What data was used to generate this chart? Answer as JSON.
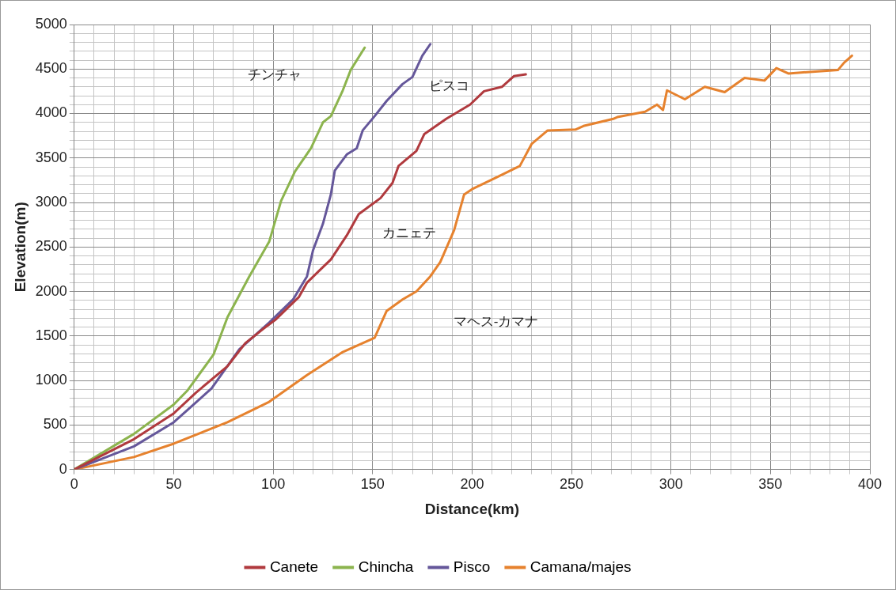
{
  "chart_data": {
    "type": "line",
    "xlabel": "Distance(km)",
    "ylabel": "Elevation(m)",
    "xlim": [
      0,
      400
    ],
    "ylim": [
      0,
      5000
    ],
    "xticks": [
      0,
      {
        "value": 10,
        "label": null
      },
      {
        "value": 20,
        "label": null
      },
      {
        "value": 30,
        "label": null
      },
      {
        "value": 40,
        "label": null
      },
      50,
      {
        "value": 60,
        "label": null
      },
      {
        "value": 70,
        "label": null
      },
      {
        "value": 80,
        "label": null
      },
      {
        "value": 90,
        "label": null
      },
      100,
      {
        "value": 110,
        "label": null
      },
      {
        "value": 120,
        "label": null
      },
      {
        "value": 130,
        "label": null
      },
      {
        "value": 140,
        "label": null
      },
      150,
      {
        "value": 160,
        "label": null
      },
      {
        "value": 170,
        "label": null
      },
      {
        "value": 180,
        "label": null
      },
      {
        "value": 190,
        "label": null
      },
      200,
      {
        "value": 210,
        "label": null
      },
      {
        "value": 220,
        "label": null
      },
      {
        "value": 230,
        "label": null
      },
      {
        "value": 240,
        "label": null
      },
      250,
      {
        "value": 260,
        "label": null
      },
      {
        "value": 270,
        "label": null
      },
      {
        "value": 280,
        "label": null
      },
      {
        "value": 290,
        "label": null
      },
      300,
      {
        "value": 310,
        "label": null
      },
      {
        "value": 320,
        "label": null
      },
      {
        "value": 330,
        "label": null
      },
      {
        "value": 340,
        "label": null
      },
      350,
      {
        "value": 360,
        "label": null
      },
      {
        "value": 370,
        "label": null
      },
      {
        "value": 380,
        "label": null
      },
      {
        "value": 390,
        "label": null
      },
      400
    ],
    "yticks": [
      0,
      {
        "value": 100,
        "label": null
      },
      {
        "value": 200,
        "label": null
      },
      {
        "value": 300,
        "label": null
      },
      {
        "value": 400,
        "label": null
      },
      500,
      {
        "value": 600,
        "label": null
      },
      {
        "value": 700,
        "label": null
      },
      {
        "value": 800,
        "label": null
      },
      {
        "value": 900,
        "label": null
      },
      1000,
      {
        "value": 1100,
        "label": null
      },
      {
        "value": 1200,
        "label": null
      },
      {
        "value": 1300,
        "label": null
      },
      {
        "value": 1400,
        "label": null
      },
      1500,
      {
        "value": 1600,
        "label": null
      },
      {
        "value": 1700,
        "label": null
      },
      {
        "value": 1800,
        "label": null
      },
      {
        "value": 1900,
        "label": null
      },
      2000,
      {
        "value": 2100,
        "label": null
      },
      {
        "value": 2200,
        "label": null
      },
      {
        "value": 2300,
        "label": null
      },
      {
        "value": 2400,
        "label": null
      },
      2500,
      {
        "value": 2600,
        "label": null
      },
      {
        "value": 2700,
        "label": null
      },
      {
        "value": 2800,
        "label": null
      },
      {
        "value": 2900,
        "label": null
      },
      3000,
      {
        "value": 3100,
        "label": null
      },
      {
        "value": 3200,
        "label": null
      },
      {
        "value": 3300,
        "label": null
      },
      {
        "value": 3400,
        "label": null
      },
      3500,
      {
        "value": 3600,
        "label": null
      },
      {
        "value": 3700,
        "label": null
      },
      {
        "value": 3800,
        "label": null
      },
      {
        "value": 3900,
        "label": null
      },
      4000,
      {
        "value": 4100,
        "label": null
      },
      {
        "value": 4200,
        "label": null
      },
      {
        "value": 4300,
        "label": null
      },
      {
        "value": 4400,
        "label": null
      },
      4500,
      {
        "value": 4600,
        "label": null
      },
      {
        "value": 4700,
        "label": null
      },
      {
        "value": 4800,
        "label": null
      },
      {
        "value": 4900,
        "label": null
      },
      5000
    ],
    "grid": true,
    "legend": "bottom",
    "series": [
      {
        "name": "Canete",
        "color": "#b03a3e",
        "x": [
          0,
          30,
          50,
          61,
          77,
          86,
          95,
          101,
          113,
          117,
          123,
          129,
          137,
          143,
          154,
          160,
          163,
          172,
          176,
          187,
          199,
          206,
          215,
          221,
          227
        ],
        "values": [
          0,
          340,
          630,
          860,
          1160,
          1420,
          1580,
          1680,
          1940,
          2100,
          2230,
          2360,
          2630,
          2870,
          3050,
          3220,
          3410,
          3580,
          3770,
          3940,
          4100,
          4250,
          4300,
          4420,
          4440
        ]
      },
      {
        "name": "Chincha",
        "color": "#8cb44e",
        "x": [
          0,
          30,
          50,
          57,
          70,
          77,
          88,
          98,
          104,
          111,
          119,
          125,
          129,
          135,
          139,
          146
        ],
        "values": [
          0,
          400,
          730,
          890,
          1290,
          1710,
          2170,
          2560,
          3020,
          3350,
          3610,
          3900,
          3970,
          4260,
          4490,
          4740
        ]
      },
      {
        "name": "Pisco",
        "color": "#65579a",
        "x": [
          0,
          30,
          50,
          69,
          83,
          98,
          110,
          117,
          120,
          125,
          129,
          131,
          137,
          142,
          145,
          151,
          157,
          165,
          170,
          175,
          179
        ],
        "values": [
          0,
          260,
          530,
          910,
          1350,
          1650,
          1910,
          2170,
          2460,
          2760,
          3090,
          3360,
          3540,
          3610,
          3810,
          3970,
          4140,
          4330,
          4410,
          4650,
          4780
        ]
      },
      {
        "name": "Camana/majes",
        "color": "#e6822e",
        "x": [
          0,
          30,
          50,
          77,
          98,
          117,
          135,
          151,
          157,
          165,
          172,
          179,
          184,
          191,
          196,
          200,
          212,
          224,
          230,
          238,
          252,
          256,
          271,
          273,
          287,
          293,
          296,
          298,
          307,
          317,
          327,
          337,
          347,
          353,
          359,
          384,
          387,
          391
        ],
        "values": [
          0,
          140,
          290,
          530,
          760,
          1060,
          1320,
          1480,
          1780,
          1910,
          2000,
          2170,
          2330,
          2690,
          3090,
          3150,
          3280,
          3410,
          3660,
          3810,
          3820,
          3860,
          3940,
          3960,
          4020,
          4100,
          4040,
          4260,
          4160,
          4300,
          4240,
          4400,
          4370,
          4510,
          4450,
          4490,
          4570,
          4650
        ]
      }
    ],
    "annotations": [
      "チンチャ",
      "ピスコ",
      "カニェテ",
      "マヘス-カマナ"
    ]
  }
}
